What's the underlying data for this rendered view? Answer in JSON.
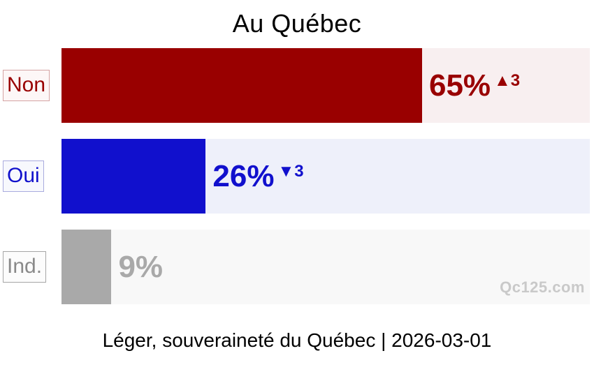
{
  "title": "Au Québec",
  "footer": "Léger, souveraineté du Québec | 2026-03-01",
  "watermark": "Qc125.com",
  "chart_data": {
    "type": "bar",
    "orientation": "horizontal",
    "title": "Au Québec",
    "categories": [
      "Non",
      "Oui",
      "Ind."
    ],
    "values": [
      65,
      26,
      9
    ],
    "value_labels": [
      "65%",
      "26%",
      "9%"
    ],
    "changes": [
      "▲3",
      "▼3",
      ""
    ],
    "xlim": [
      0,
      100
    ],
    "grid": false,
    "legend": false,
    "source_caption": "Léger, souveraineté du Québec | 2026-03-01",
    "colors": {
      "bars": [
        "#990000",
        "#1110cd",
        "#a9a9a9"
      ],
      "tracks": [
        "#f8eff0",
        "#eef0fa",
        "#f8f8f8"
      ],
      "value_text": [
        "#990000",
        "#1110cd",
        "#a9a9a9"
      ],
      "label_text": [
        "#990000",
        "#1111cc",
        "#8a8a8a"
      ],
      "label_border": [
        "#d5a3a3",
        "#a9abde",
        "#a6a6a6"
      ],
      "label_bg": [
        "#fdf7f7",
        "#f7f8fd",
        "#fcfcfc"
      ],
      "watermark_text": "#c9c9c9",
      "title_text": "#000000"
    }
  }
}
